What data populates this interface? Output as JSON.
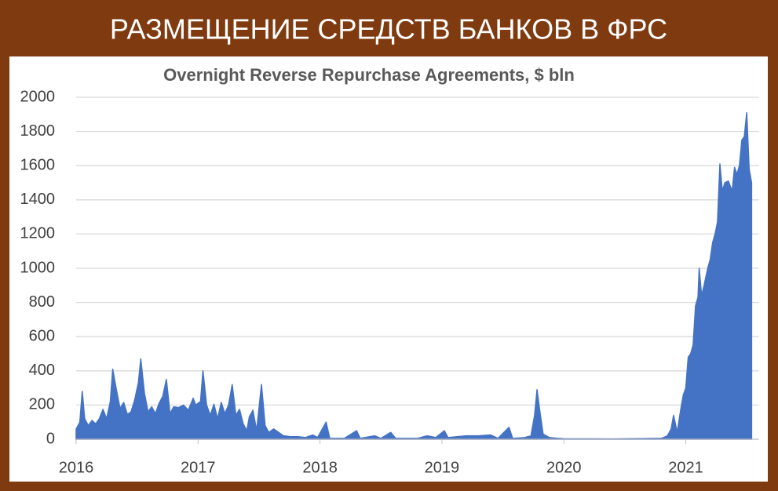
{
  "header": {
    "title": "РАЗМЕЩЕНИЕ СРЕДСТВ БАНКОВ В ФРС"
  },
  "chart_data": {
    "type": "area",
    "title": "Overnight Reverse Repurchase Agreements, $ bln",
    "color": "#4472c4",
    "grid": true,
    "xlim": [
      2016,
      2021.6
    ],
    "xticks": [
      2016,
      2017,
      2018,
      2019,
      2020,
      2021
    ],
    "ylim": [
      0,
      2000
    ],
    "yticks": [
      0,
      200,
      400,
      600,
      800,
      1000,
      1200,
      1400,
      1600,
      1800,
      2000
    ],
    "x": [
      2016.0,
      2016.03,
      2016.05,
      2016.07,
      2016.1,
      2016.13,
      2016.16,
      2016.19,
      2016.22,
      2016.25,
      2016.28,
      2016.3,
      2016.33,
      2016.36,
      2016.39,
      2016.42,
      2016.45,
      2016.48,
      2016.51,
      2016.53,
      2016.56,
      2016.59,
      2016.62,
      2016.65,
      2016.68,
      2016.71,
      2016.74,
      2016.77,
      2016.8,
      2016.84,
      2016.88,
      2016.92,
      2016.96,
      2016.98,
      2017.02,
      2017.04,
      2017.07,
      2017.1,
      2017.13,
      2017.16,
      2017.19,
      2017.22,
      2017.25,
      2017.28,
      2017.31,
      2017.34,
      2017.37,
      2017.4,
      2017.42,
      2017.45,
      2017.48,
      2017.52,
      2017.55,
      2017.58,
      2017.62,
      2017.66,
      2017.7,
      2017.76,
      2017.82,
      2017.88,
      2017.94,
      2017.98,
      2018.05,
      2018.08,
      2018.2,
      2018.3,
      2018.33,
      2018.45,
      2018.5,
      2018.58,
      2018.62,
      2018.8,
      2018.88,
      2018.95,
      2019.02,
      2019.05,
      2019.2,
      2019.3,
      2019.4,
      2019.46,
      2019.55,
      2019.58,
      2019.68,
      2019.73,
      2019.76,
      2019.78,
      2019.8,
      2019.83,
      2019.88,
      2019.95,
      2020.0,
      2020.4,
      2020.8,
      2020.85,
      2020.88,
      2020.9,
      2020.93,
      2020.96,
      2020.98,
      2021.0,
      2021.02,
      2021.04,
      2021.06,
      2021.08,
      2021.1,
      2021.11,
      2021.13,
      2021.15,
      2021.18,
      2021.2,
      2021.22,
      2021.24,
      2021.26,
      2021.28,
      2021.3,
      2021.32,
      2021.35,
      2021.38,
      2021.4,
      2021.42,
      2021.44,
      2021.46,
      2021.48,
      2021.5,
      2021.52,
      2021.54
    ],
    "values": [
      60,
      100,
      280,
      120,
      80,
      110,
      90,
      120,
      175,
      120,
      220,
      410,
      290,
      180,
      215,
      145,
      160,
      230,
      330,
      470,
      270,
      160,
      190,
      150,
      210,
      250,
      350,
      150,
      190,
      185,
      200,
      170,
      240,
      200,
      220,
      400,
      200,
      140,
      205,
      120,
      215,
      150,
      200,
      320,
      140,
      175,
      90,
      50,
      130,
      170,
      50,
      320,
      80,
      40,
      60,
      40,
      20,
      15,
      15,
      10,
      25,
      10,
      100,
      5,
      5,
      50,
      5,
      20,
      5,
      40,
      5,
      5,
      20,
      10,
      50,
      10,
      20,
      20,
      25,
      5,
      70,
      5,
      10,
      20,
      140,
      290,
      180,
      30,
      10,
      5,
      3,
      2,
      5,
      20,
      60,
      140,
      40,
      180,
      260,
      300,
      480,
      500,
      550,
      780,
      830,
      1000,
      840,
      900,
      1000,
      1050,
      1150,
      1200,
      1270,
      1610,
      1450,
      1500,
      1510,
      1450,
      1590,
      1550,
      1600,
      1750,
      1770,
      1910,
      1580,
      1500
    ]
  }
}
